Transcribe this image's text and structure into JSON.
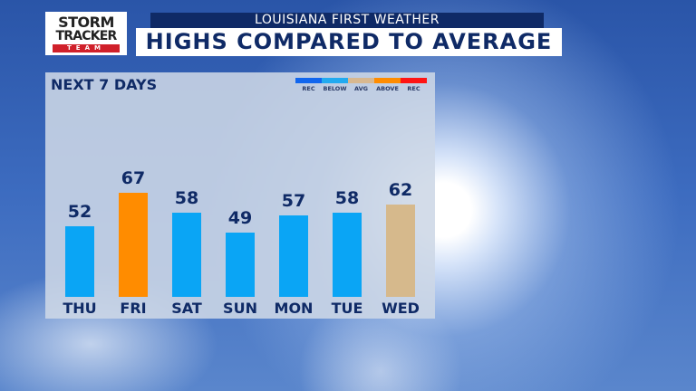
{
  "logo": {
    "line1": "STORM",
    "line2": "TRACKER",
    "line3": "TEAM"
  },
  "header": {
    "subtitle": "LOUISIANA FIRST WEATHER",
    "title": "HIGHS COMPARED TO AVERAGE"
  },
  "panel": {
    "title": "NEXT 7 DAYS"
  },
  "legend": [
    {
      "label": "REC",
      "color": "#1166ee"
    },
    {
      "label": "BELOW",
      "color": "#22aaf0"
    },
    {
      "label": "AVG",
      "color": "#d8b890"
    },
    {
      "label": "ABOVE",
      "color": "#ff8c00"
    },
    {
      "label": "REC",
      "color": "#ff1414"
    }
  ],
  "chart_data": {
    "type": "bar",
    "categories": [
      "THU",
      "FRI",
      "SAT",
      "SUN",
      "MON",
      "TUE",
      "WED"
    ],
    "values": [
      52,
      67,
      58,
      49,
      57,
      58,
      62
    ],
    "categories_vs_average": [
      "below",
      "above",
      "below",
      "below",
      "below",
      "below",
      "avg"
    ],
    "colors": {
      "below": "#0aa5f5",
      "above": "#ff8c00",
      "avg": "#d6b98c"
    }
  }
}
